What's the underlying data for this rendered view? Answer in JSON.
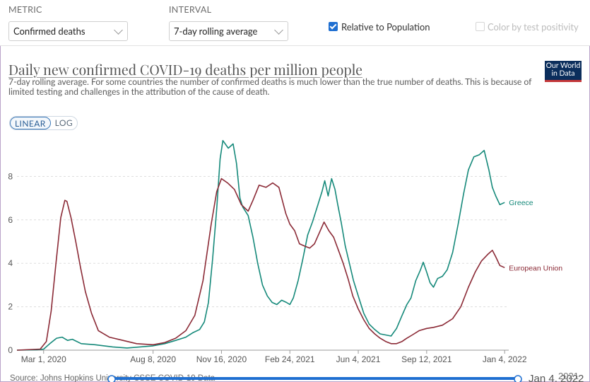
{
  "controls": {
    "metric_label": "METRIC",
    "metric_value": "Confirmed deaths",
    "interval_label": "INTERVAL",
    "interval_value": "7-day rolling average",
    "relative_label": "Relative to Population",
    "relative_checked": true,
    "color_label": "Color by test positivity",
    "color_checked": false
  },
  "title": "Daily new confirmed COVID-19 deaths per million people",
  "subtitle": "7-day rolling average. For some countries the number of confirmed deaths is much lower than the true number of deaths. This is because of limited testing and challenges in the attribution of the cause of death.",
  "logo_text": "Our World in Data",
  "scale_options": [
    "LINEAR",
    "LOG"
  ],
  "scale_selected": "LINEAR",
  "bottom": {
    "source_text": "Source: Johns Hopkins University CSSE COVID-19 Data",
    "end_date_text": "Jan 4, 2022",
    "overlap_text": "2021"
  },
  "colors": {
    "greece": "#15897a",
    "eu": "#8b2a36",
    "grid": "#dddddd",
    "axis_text": "#555555",
    "accent": "#1f6fd1"
  },
  "chart_data": {
    "type": "line",
    "ylabel": "",
    "xlabel": "",
    "ylim": [
      0,
      10
    ],
    "yticks": [
      0,
      2,
      4,
      6,
      8
    ],
    "x_range": [
      "2020-01-22",
      "2022-01-10"
    ],
    "xticks": [
      {
        "date": "2020-03-01",
        "label": "Mar 1, 2020"
      },
      {
        "date": "2020-08-08",
        "label": "Aug 8, 2020"
      },
      {
        "date": "2020-11-16",
        "label": "Nov 16, 2020"
      },
      {
        "date": "2021-02-24",
        "label": "Feb 24, 2021"
      },
      {
        "date": "2021-06-04",
        "label": "Jun 4, 2021"
      },
      {
        "date": "2021-09-12",
        "label": "Sep 12, 2021"
      },
      {
        "date": "2022-01-04",
        "label": "Jan 4, 2022"
      }
    ],
    "grid": true,
    "legend_placement": "right, at line ends",
    "series": [
      {
        "name": "Greece",
        "points": [
          [
            "2020-01-22",
            0
          ],
          [
            "2020-02-20",
            0.02
          ],
          [
            "2020-03-01",
            0.05
          ],
          [
            "2020-03-10",
            0.3
          ],
          [
            "2020-03-20",
            0.55
          ],
          [
            "2020-03-28",
            0.6
          ],
          [
            "2020-04-05",
            0.45
          ],
          [
            "2020-04-12",
            0.5
          ],
          [
            "2020-04-25",
            0.3
          ],
          [
            "2020-05-15",
            0.25
          ],
          [
            "2020-06-10",
            0.15
          ],
          [
            "2020-07-01",
            0.1
          ],
          [
            "2020-07-20",
            0.15
          ],
          [
            "2020-08-08",
            0.2
          ],
          [
            "2020-08-25",
            0.3
          ],
          [
            "2020-09-10",
            0.45
          ],
          [
            "2020-09-25",
            0.6
          ],
          [
            "2020-10-05",
            0.8
          ],
          [
            "2020-10-15",
            0.95
          ],
          [
            "2020-10-22",
            1.3
          ],
          [
            "2020-10-28",
            2.2
          ],
          [
            "2020-11-03",
            4.2
          ],
          [
            "2020-11-09",
            6.5
          ],
          [
            "2020-11-14",
            8.8
          ],
          [
            "2020-11-18",
            9.65
          ],
          [
            "2020-11-26",
            9.3
          ],
          [
            "2020-12-03",
            9.5
          ],
          [
            "2020-12-08",
            8.6
          ],
          [
            "2020-12-13",
            7.0
          ],
          [
            "2020-12-17",
            6.6
          ],
          [
            "2020-12-25",
            6.2
          ],
          [
            "2021-01-01",
            5.2
          ],
          [
            "2021-01-08",
            4.0
          ],
          [
            "2021-01-15",
            3.0
          ],
          [
            "2021-01-22",
            2.5
          ],
          [
            "2021-01-29",
            2.2
          ],
          [
            "2021-02-05",
            2.1
          ],
          [
            "2021-02-12",
            2.3
          ],
          [
            "2021-02-19",
            2.2
          ],
          [
            "2021-02-24",
            2.1
          ],
          [
            "2021-03-01",
            2.4
          ],
          [
            "2021-03-08",
            3.2
          ],
          [
            "2021-03-15",
            4.2
          ],
          [
            "2021-03-22",
            5.3
          ],
          [
            "2021-03-29",
            5.9
          ],
          [
            "2021-04-05",
            6.6
          ],
          [
            "2021-04-12",
            7.3
          ],
          [
            "2021-04-16",
            7.8
          ],
          [
            "2021-04-21",
            7.1
          ],
          [
            "2021-04-26",
            7.9
          ],
          [
            "2021-05-01",
            7.4
          ],
          [
            "2021-05-05",
            6.7
          ],
          [
            "2021-05-10",
            5.9
          ],
          [
            "2021-05-16",
            4.8
          ],
          [
            "2021-05-22",
            4.0
          ],
          [
            "2021-05-28",
            3.2
          ],
          [
            "2021-06-04",
            2.5
          ],
          [
            "2021-06-12",
            1.7
          ],
          [
            "2021-06-20",
            1.2
          ],
          [
            "2021-06-28",
            0.95
          ],
          [
            "2021-07-06",
            0.75
          ],
          [
            "2021-07-14",
            0.7
          ],
          [
            "2021-07-22",
            0.65
          ],
          [
            "2021-07-30",
            1.0
          ],
          [
            "2021-08-07",
            1.6
          ],
          [
            "2021-08-14",
            2.1
          ],
          [
            "2021-08-20",
            2.4
          ],
          [
            "2021-08-27",
            3.2
          ],
          [
            "2021-09-03",
            3.7
          ],
          [
            "2021-09-07",
            4.05
          ],
          [
            "2021-09-12",
            3.6
          ],
          [
            "2021-09-17",
            3.1
          ],
          [
            "2021-09-22",
            2.9
          ],
          [
            "2021-09-28",
            3.3
          ],
          [
            "2021-10-05",
            3.4
          ],
          [
            "2021-10-12",
            3.7
          ],
          [
            "2021-10-20",
            4.5
          ],
          [
            "2021-10-28",
            5.8
          ],
          [
            "2021-11-05",
            7.2
          ],
          [
            "2021-11-12",
            8.3
          ],
          [
            "2021-11-20",
            8.9
          ],
          [
            "2021-11-28",
            9.0
          ],
          [
            "2021-12-05",
            9.2
          ],
          [
            "2021-12-12",
            8.3
          ],
          [
            "2021-12-17",
            7.5
          ],
          [
            "2021-12-22",
            7.1
          ],
          [
            "2021-12-28",
            6.7
          ],
          [
            "2022-01-04",
            6.8
          ]
        ]
      },
      {
        "name": "European Union",
        "points": [
          [
            "2020-01-22",
            0
          ],
          [
            "2020-02-25",
            0.05
          ],
          [
            "2020-03-05",
            0.4
          ],
          [
            "2020-03-12",
            1.8
          ],
          [
            "2020-03-19",
            4.0
          ],
          [
            "2020-03-26",
            6.1
          ],
          [
            "2020-04-01",
            6.9
          ],
          [
            "2020-04-04",
            6.85
          ],
          [
            "2020-04-10",
            6.1
          ],
          [
            "2020-04-17",
            5.0
          ],
          [
            "2020-04-24",
            3.8
          ],
          [
            "2020-05-01",
            2.7
          ],
          [
            "2020-05-10",
            1.7
          ],
          [
            "2020-05-20",
            0.9
          ],
          [
            "2020-06-05",
            0.6
          ],
          [
            "2020-06-25",
            0.45
          ],
          [
            "2020-07-15",
            0.3
          ],
          [
            "2020-08-08",
            0.25
          ],
          [
            "2020-08-25",
            0.35
          ],
          [
            "2020-09-10",
            0.55
          ],
          [
            "2020-09-25",
            0.9
          ],
          [
            "2020-10-08",
            1.6
          ],
          [
            "2020-10-20",
            3.2
          ],
          [
            "2020-11-01",
            5.8
          ],
          [
            "2020-11-09",
            7.3
          ],
          [
            "2020-11-16",
            7.9
          ],
          [
            "2020-11-25",
            7.7
          ],
          [
            "2020-12-05",
            7.4
          ],
          [
            "2020-12-15",
            6.7
          ],
          [
            "2020-12-25",
            6.4
          ],
          [
            "2021-01-01",
            6.9
          ],
          [
            "2021-01-10",
            7.6
          ],
          [
            "2021-01-20",
            7.5
          ],
          [
            "2021-01-30",
            7.7
          ],
          [
            "2021-02-08",
            7.5
          ],
          [
            "2021-02-18",
            6.3
          ],
          [
            "2021-02-24",
            5.8
          ],
          [
            "2021-03-03",
            5.5
          ],
          [
            "2021-03-10",
            4.9
          ],
          [
            "2021-03-17",
            4.8
          ],
          [
            "2021-03-25",
            4.7
          ],
          [
            "2021-04-01",
            4.9
          ],
          [
            "2021-04-08",
            5.4
          ],
          [
            "2021-04-15",
            5.9
          ],
          [
            "2021-04-22",
            5.5
          ],
          [
            "2021-04-29",
            5.2
          ],
          [
            "2021-05-06",
            4.6
          ],
          [
            "2021-05-13",
            4.0
          ],
          [
            "2021-05-20",
            3.3
          ],
          [
            "2021-05-27",
            2.5
          ],
          [
            "2021-06-04",
            1.9
          ],
          [
            "2021-06-12",
            1.4
          ],
          [
            "2021-06-20",
            1.0
          ],
          [
            "2021-06-28",
            0.75
          ],
          [
            "2021-07-06",
            0.55
          ],
          [
            "2021-07-14",
            0.4
          ],
          [
            "2021-07-22",
            0.3
          ],
          [
            "2021-07-30",
            0.3
          ],
          [
            "2021-08-07",
            0.4
          ],
          [
            "2021-08-14",
            0.55
          ],
          [
            "2021-08-22",
            0.7
          ],
          [
            "2021-09-01",
            0.9
          ],
          [
            "2021-09-12",
            1.0
          ],
          [
            "2021-09-22",
            1.05
          ],
          [
            "2021-10-05",
            1.15
          ],
          [
            "2021-10-20",
            1.45
          ],
          [
            "2021-11-01",
            2.0
          ],
          [
            "2021-11-12",
            2.9
          ],
          [
            "2021-11-22",
            3.6
          ],
          [
            "2021-12-01",
            4.1
          ],
          [
            "2021-12-10",
            4.4
          ],
          [
            "2021-12-17",
            4.6
          ],
          [
            "2021-12-22",
            4.3
          ],
          [
            "2021-12-28",
            3.9
          ],
          [
            "2022-01-04",
            3.8
          ]
        ]
      }
    ]
  }
}
